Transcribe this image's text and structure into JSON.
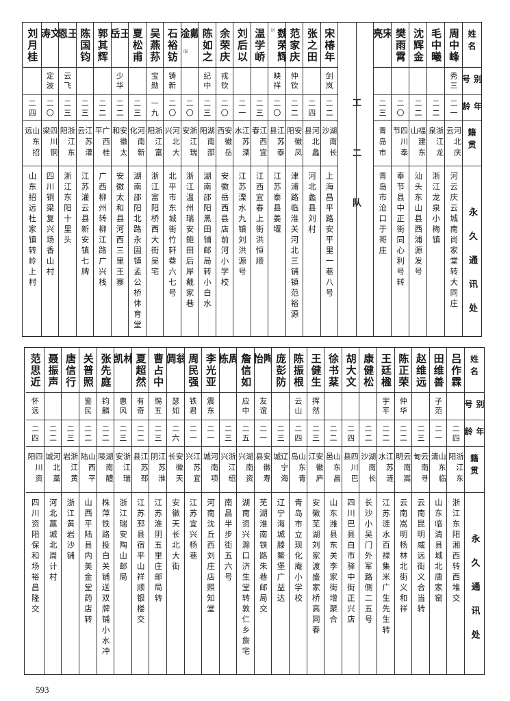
{
  "header": {
    "name": "姓名",
    "alias": "别号",
    "age": "年龄",
    "native": "籍贯",
    "address": "永久通讯处"
  },
  "top": {
    "right_rows": [
      {
        "name": "周中峰",
        "alias": "秀三",
        "age": "二一",
        "native": "河北庆云",
        "address": "河云庆云城南尚家堂转大同庄"
      },
      {
        "name": "毛中曦",
        "alias": "",
        "age": "二二",
        "native": "浙江龙泉",
        "address": "浙江龙泉小梅镇"
      },
      {
        "name": "沈辉金",
        "alias": "",
        "age": "二二",
        "native": "福建东山",
        "address": "汕头东山县西浦源发号"
      },
      {
        "name": "樊雨霄",
        "alias": "",
        "age": "二〇",
        "native": "四川奉节",
        "address": "奉节县中正街同心利号转"
      },
      {
        "name": "宋亮",
        "alias": "",
        "age": "二三",
        "native": "青岛市",
        "address": "青岛市沧口于哥庄"
      }
    ],
    "separator": "工二队",
    "left_rows": [
      {
        "name": "宋椿年",
        "alias": "剑岚",
        "age": "二二",
        "native": "湖南长沙",
        "address": "上海昌平路安平里一巷八号"
      },
      {
        "name": "张之田",
        "alias": "",
        "age": "二四",
        "native": "河北蠡县",
        "address": "河北蠡县刘村"
      },
      {
        "name": "范家庆",
        "alias": "仲钦",
        "age": "二二",
        "native": "安徽凤阳",
        "address": "津浦路临淮关河北三铺镇范裕源"
      },
      {
        "name": "魏荣辉",
        "note": "⑺",
        "alias": "映祥",
        "age": "二〇",
        "native": "江苏泰县",
        "address": "江苏泰县姜堰"
      },
      {
        "name": "温学峤",
        "alias": "",
        "age": "二三",
        "native": "江西宜春",
        "address": "江西宜春上街洪恒顺"
      },
      {
        "name": "刘后以",
        "alias": "",
        "age": "二一",
        "native": "江苏溧水",
        "address": "江苏溧水九镇刘洪源号"
      },
      {
        "name": "余荣庆",
        "alias": "戎钦",
        "age": "二〇",
        "native": "安徽岳西",
        "address": "安徽岳西县店前河小学校"
      },
      {
        "name": "陈如之",
        "alias": "纪中",
        "age": "二三",
        "native": "湖南邵阳",
        "address": "湖南邵阳黑田铺邮局转小白水"
      },
      {
        "name": "戴淦",
        "note": "⑹",
        "alias": "",
        "age": "二〇",
        "native": "浙江瑞安",
        "address": "浙江温州瑞安鲍田后岸戴家巷"
      },
      {
        "name": "石裕钫",
        "alias": "铸新",
        "age": "二〇",
        "native": "河北大兴",
        "address": "北平市东城街竹轩巷六七号"
      },
      {
        "name": "吴燕荪",
        "alias": "宝勋",
        "age": "一九",
        "native": "浙江富阳",
        "address": "浙江富阳桥西大街吴宅"
      },
      {
        "name": "夏松甫",
        "alias": "",
        "age": "二三",
        "native": "河南新化",
        "address": "湖南邵阳北路永固镇孟公桥体育堂"
      },
      {
        "name": "王岳",
        "alias": "少华",
        "age": "二二",
        "native": "安徽太和",
        "address": "安徽太和县河西三里王寨"
      },
      {
        "name": "郭其辉",
        "alias": "",
        "age": "二二",
        "native": "广西桂平",
        "address": "广西柳州转柳江路广兴栈"
      },
      {
        "name": "陈国钧",
        "alias": "",
        "age": "二三",
        "native": "江苏灌云",
        "address": "江苏灌云县新安镇七牌"
      },
      {
        "name": "王恩",
        "alias": "云飞",
        "age": "二三",
        "native": "浙江东阳",
        "address": "浙江东阳十里头"
      },
      {
        "name": "文涛",
        "alias": "定波",
        "age": "二〇",
        "native": "四川铜梁",
        "address": "四川铜梁复兴场香山村"
      },
      {
        "name": "刘月桂",
        "alias": "",
        "age": "二四",
        "native": "山东招远",
        "address": "山东招远杜家镇转岭上村"
      }
    ]
  },
  "bottom": {
    "rows": [
      {
        "name": "吕作霖",
        "alias": "",
        "age": "二四",
        "native": "浙江东阳",
        "address": "浙江东阳湘西转西堆交"
      },
      {
        "name": "田维善",
        "alias": "子范",
        "age": "二一",
        "native": "山东临清",
        "address": "山东临清县城北唐家窑"
      },
      {
        "name": "赵维远",
        "alias": "",
        "age": "二三",
        "native": "云南寻甸",
        "address": "云南昆明威远街义合当转"
      },
      {
        "name": "陈正荣",
        "alias": "仲华",
        "age": "二二",
        "native": "云南嵩明",
        "address": "云南嵩明杨林北街义和祥"
      },
      {
        "name": "王廷楹",
        "alias": "宇平",
        "age": "二二",
        "native": "江苏涟水",
        "address": "江苏涟水百禄集米广生先生转"
      },
      {
        "name": "康健松",
        "alias": "",
        "age": "二二",
        "native": "湖南长沙",
        "address": "长沙小吴门外军路侧二五号"
      },
      {
        "name": "胡大文",
        "alias": "",
        "age": "二四",
        "native": "四川巴县",
        "address": "四川巴县白市驿中街正兴店"
      },
      {
        "name": "徐书棻",
        "alias": "",
        "age": "二二",
        "native": "山东昌邑",
        "address": "山东潍县东关李家街增聚合"
      },
      {
        "name": "王健生",
        "alias": "挥然",
        "age": "二三",
        "native": "安徽庐江",
        "address": "安徽芜湖刘家渡盛家桥高同春"
      },
      {
        "name": "陈振根",
        "alias": "云山",
        "age": "二四",
        "native": "山东青岛",
        "address": "青岛市立现化庵小学校"
      },
      {
        "name": "庞彭防",
        "alias": "",
        "age": "二三",
        "native": "辽宁海城",
        "address": "辽宁海城滕鳌堡广益达"
      },
      {
        "name": "陶怡",
        "alias": "友谊",
        "age": "二一",
        "native": "安徽寿县",
        "address": "芜湖淮南铁路朱巷邮局交"
      },
      {
        "name": "詹信如",
        "alias": "应中",
        "age": "二五",
        "native": "湖南资兴",
        "address": "湖南资兴滁口济生堂转敦仁乡詹宅"
      },
      {
        "name": "周栋",
        "alias": "",
        "age": "二三",
        "native": "浙江绍兴",
        "address": "南昌半步街五六号"
      },
      {
        "name": "李光亚",
        "alias": "震东",
        "age": "二一",
        "native": "河南项城",
        "address": "河南沈丘西刘庄店照知堂"
      },
      {
        "name": "周民强",
        "alias": "铁君",
        "age": "二一",
        "native": "江苏宜兴",
        "address": "江苏宜兴杨巷"
      },
      {
        "name": "翁倜",
        "alias": "瑟如",
        "age": "二六",
        "native": "安徽天长",
        "address": "安徽天长北大街"
      },
      {
        "name": "曹占中",
        "alias": "惕五",
        "age": "二三",
        "native": "江苏淮阴",
        "address": "江苏淮阴五里庄邮局转"
      },
      {
        "name": "夏超然",
        "alias": "有奇",
        "age": "二二",
        "native": "江苏邳县",
        "address": "江苏邳县宿平山祥顺银楼交"
      },
      {
        "name": "林凯",
        "alias": "惠风",
        "age": "二三",
        "native": "浙江瑞安",
        "address": "浙江瑞安陶山邮局"
      },
      {
        "name": "张先庭",
        "alias": "钧麟",
        "age": "二二",
        "native": "湖南醴陵",
        "address": "株萍铁路投白关铺送双牌铺小水冲"
      },
      {
        "name": "关普照",
        "alias": "鉴民",
        "age": "二二",
        "native": "山西平陆",
        "address": "山西平陆县内美金堂药店转"
      },
      {
        "name": "唐信行",
        "alias": "",
        "age": "二三",
        "native": "浙江黄岩",
        "address": "浙江黄岩沙铺"
      },
      {
        "name": "聂振声",
        "alias": "",
        "age": "二二",
        "native": "河北藁城",
        "address": "河北藁城北周计村"
      },
      {
        "name": "范思近",
        "alias": "怀远",
        "age": "二四",
        "native": "四川资阳",
        "address": "四川资阳保和场裕昌隆交"
      }
    ]
  },
  "page_number": "593"
}
